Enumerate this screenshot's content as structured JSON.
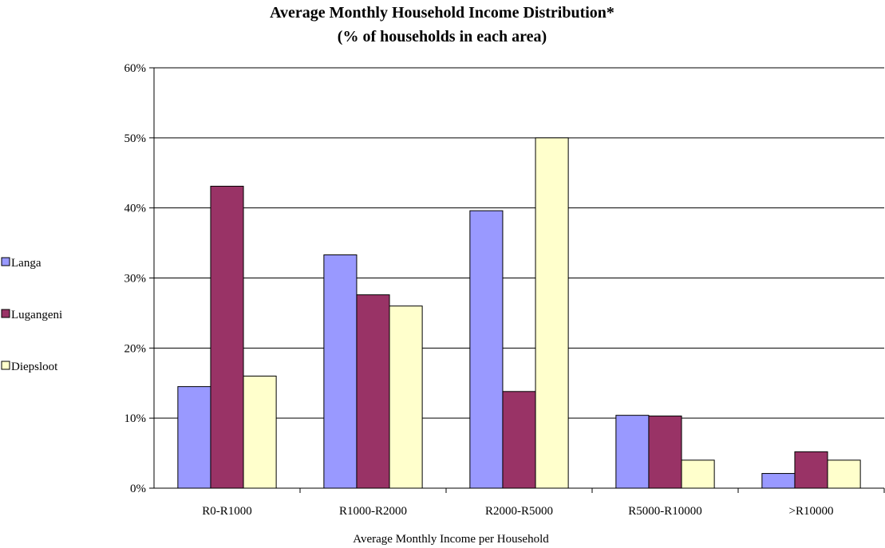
{
  "chart_data": {
    "type": "bar",
    "title": "Average Monthly Household Income Distribution*",
    "subtitle": "(% of households in each area)",
    "xlabel": "Average Monthly Income per Household",
    "ylabel": "",
    "categories": [
      "R0-R1000",
      "R1000-R2000",
      "R2000-R5000",
      "R5000-R10000",
      ">R10000"
    ],
    "series": [
      {
        "name": "Langa",
        "color": "#9999ff",
        "values": [
          14.5,
          33.3,
          39.6,
          10.4,
          2.1
        ]
      },
      {
        "name": "Lugangeni",
        "color": "#993366",
        "values": [
          43.1,
          27.6,
          13.8,
          10.3,
          5.2
        ]
      },
      {
        "name": "Diepsloot",
        "color": "#ffffcc",
        "values": [
          16.0,
          26.0,
          50.0,
          4.0,
          4.0
        ]
      }
    ],
    "ylim": [
      0,
      60
    ],
    "yticks": [
      {
        "value": 0,
        "label": "0%"
      },
      {
        "value": 10,
        "label": "10%"
      },
      {
        "value": 20,
        "label": "20%"
      },
      {
        "value": 30,
        "label": "30%"
      },
      {
        "value": 40,
        "label": "40%"
      },
      {
        "value": 50,
        "label": "50%"
      },
      {
        "value": 60,
        "label": "60%"
      }
    ],
    "grid": true,
    "legend_position": "left"
  }
}
